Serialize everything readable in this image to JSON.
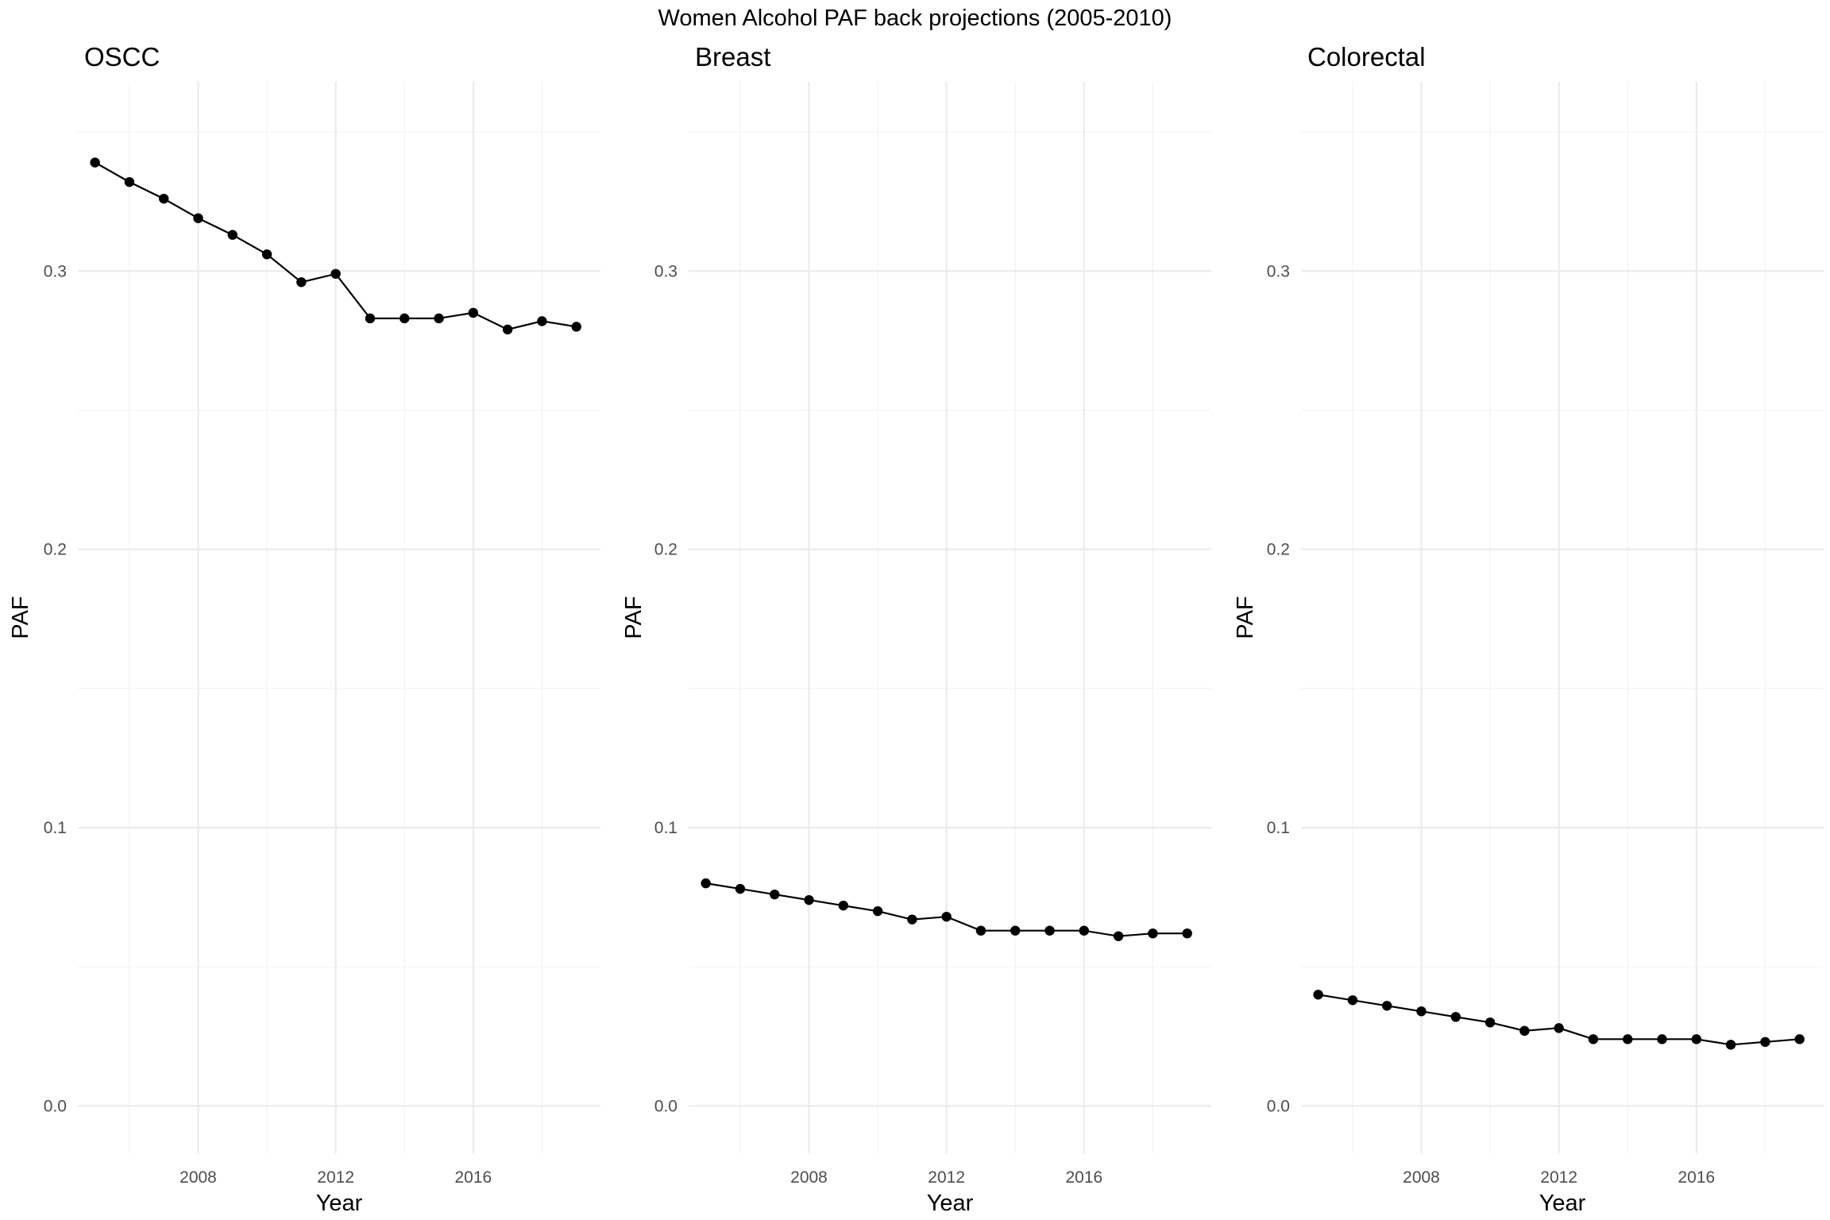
{
  "chart_data": {
    "type": "line",
    "title": "Women Alcohol PAF back projections (2005-2010)",
    "panels": [
      {
        "name": "OSCC",
        "xlabel": "Year",
        "ylabel": "PAF",
        "x": [
          2005,
          2006,
          2007,
          2008,
          2009,
          2010,
          2011,
          2012,
          2013,
          2014,
          2015,
          2016,
          2017,
          2018,
          2019
        ],
        "values": [
          0.339,
          0.332,
          0.326,
          0.319,
          0.313,
          0.306,
          0.296,
          0.299,
          0.283,
          0.283,
          0.283,
          0.285,
          0.279,
          0.282,
          0.28
        ]
      },
      {
        "name": "Breast",
        "xlabel": "Year",
        "ylabel": "PAF",
        "x": [
          2005,
          2006,
          2007,
          2008,
          2009,
          2010,
          2011,
          2012,
          2013,
          2014,
          2015,
          2016,
          2017,
          2018,
          2019
        ],
        "values": [
          0.08,
          0.078,
          0.076,
          0.074,
          0.072,
          0.07,
          0.067,
          0.068,
          0.063,
          0.063,
          0.063,
          0.063,
          0.061,
          0.062,
          0.062
        ]
      },
      {
        "name": "Colorectal",
        "xlabel": "Year",
        "ylabel": "PAF",
        "x": [
          2005,
          2006,
          2007,
          2008,
          2009,
          2010,
          2011,
          2012,
          2013,
          2014,
          2015,
          2016,
          2017,
          2018,
          2019
        ],
        "values": [
          0.04,
          0.038,
          0.036,
          0.034,
          0.032,
          0.03,
          0.027,
          0.028,
          0.024,
          0.024,
          0.024,
          0.024,
          0.022,
          0.023,
          0.024
        ]
      }
    ],
    "xlim": [
      2004.5,
      2019.7
    ],
    "ylim": [
      -0.017,
      0.368
    ],
    "xticks": [
      2008,
      2012,
      2016
    ],
    "xtick_labels": [
      "2008",
      "2012",
      "2016"
    ],
    "yticks": [
      0.0,
      0.1,
      0.2,
      0.3
    ],
    "ytick_labels": [
      "0.0",
      "0.1",
      "0.2",
      "0.3"
    ],
    "grid": true,
    "legend": "none"
  }
}
